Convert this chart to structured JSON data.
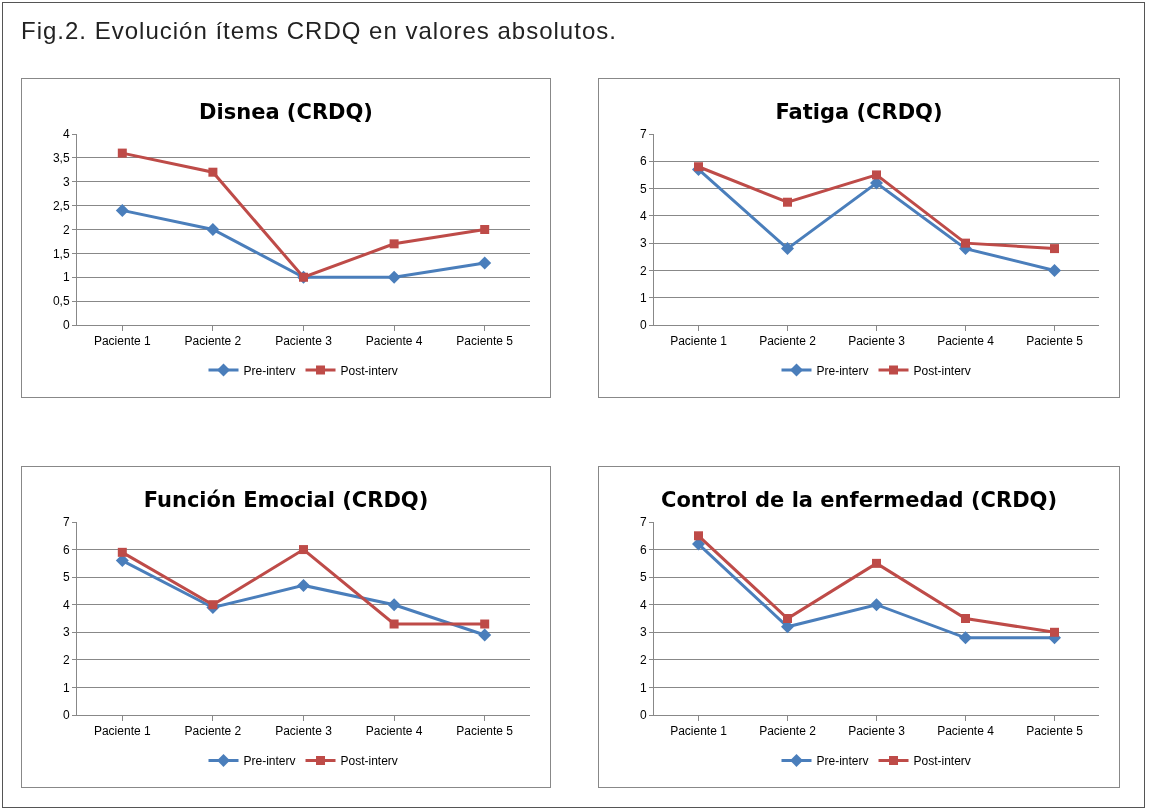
{
  "chart_data": [
    {
      "type": "line",
      "title": "Disnea (CRDQ)",
      "annotations": [
        "Fig.2. Evolución ítems CRDQ en valores absolutos."
      ],
      "categories": [
        "Paciente 1",
        "Paciente 2",
        "Paciente 3",
        "Paciente 4",
        "Paciente 5"
      ],
      "series": [
        {
          "name": "Pre-interv",
          "color": "#4a7ebb",
          "marker": "diamond",
          "values": [
            2.4,
            2,
            1,
            1,
            1.3
          ]
        },
        {
          "name": "Post-interv",
          "color": "#be4b48",
          "marker": "square",
          "values": [
            3.6,
            3.2,
            1,
            1.7,
            2
          ]
        }
      ],
      "ylim": [
        0,
        4
      ],
      "yticks": [
        0,
        {
          "value": 0.5,
          "label": "0,5"
        },
        1,
        {
          "value": 1.5,
          "label": "1,5"
        },
        2,
        {
          "value": 2.5,
          "label": "2,5"
        },
        3,
        {
          "value": 3.5,
          "label": "3,5"
        },
        4
      ],
      "grid": "y",
      "legend": "bottom"
    },
    {
      "type": "line",
      "title": "Fatiga (CRDQ)",
      "categories": [
        "Paciente 1",
        "Paciente 2",
        "Paciente 3",
        "Paciente 4",
        "Paciente 5"
      ],
      "series": [
        {
          "name": "Pre-interv",
          "color": "#4a7ebb",
          "marker": "diamond",
          "values": [
            5.7,
            2.8,
            5.2,
            2.8,
            2
          ]
        },
        {
          "name": "Post-interv",
          "color": "#be4b48",
          "marker": "square",
          "values": [
            5.8,
            4.5,
            5.5,
            3,
            2.8
          ]
        }
      ],
      "ylim": [
        0,
        7
      ],
      "yticks": [
        0,
        1,
        2,
        3,
        4,
        5,
        6,
        7
      ],
      "grid": "y",
      "legend": "bottom"
    },
    {
      "type": "line",
      "title": "Función Emocial (CRDQ)",
      "categories": [
        "Paciente 1",
        "Paciente 2",
        "Paciente 3",
        "Paciente 4",
        "Paciente 5"
      ],
      "series": [
        {
          "name": "Pre-interv",
          "color": "#4a7ebb",
          "marker": "diamond",
          "values": [
            5.6,
            3.9,
            4.7,
            4,
            2.9
          ]
        },
        {
          "name": "Post-interv",
          "color": "#be4b48",
          "marker": "square",
          "values": [
            5.9,
            4,
            6,
            3.3,
            3.3
          ]
        }
      ],
      "ylim": [
        0,
        7
      ],
      "yticks": [
        0,
        1,
        2,
        3,
        4,
        5,
        6,
        7
      ],
      "grid": "y",
      "legend": "bottom"
    },
    {
      "type": "line",
      "title": "Control de la enfermedad (CRDQ)",
      "categories": [
        "Paciente 1",
        "Paciente 2",
        "Paciente 3",
        "Paciente 4",
        "Paciente 5"
      ],
      "series": [
        {
          "name": "Pre-interv",
          "color": "#4a7ebb",
          "marker": "diamond",
          "values": [
            6.2,
            3.2,
            4,
            2.8,
            2.8
          ]
        },
        {
          "name": "Post-interv",
          "color": "#be4b48",
          "marker": "square",
          "values": [
            6.5,
            3.5,
            5.5,
            3.5,
            3
          ]
        }
      ],
      "ylim": [
        0,
        7
      ],
      "yticks": [
        0,
        1,
        2,
        3,
        4,
        5,
        6,
        7
      ],
      "grid": "y",
      "legend": "bottom"
    }
  ]
}
